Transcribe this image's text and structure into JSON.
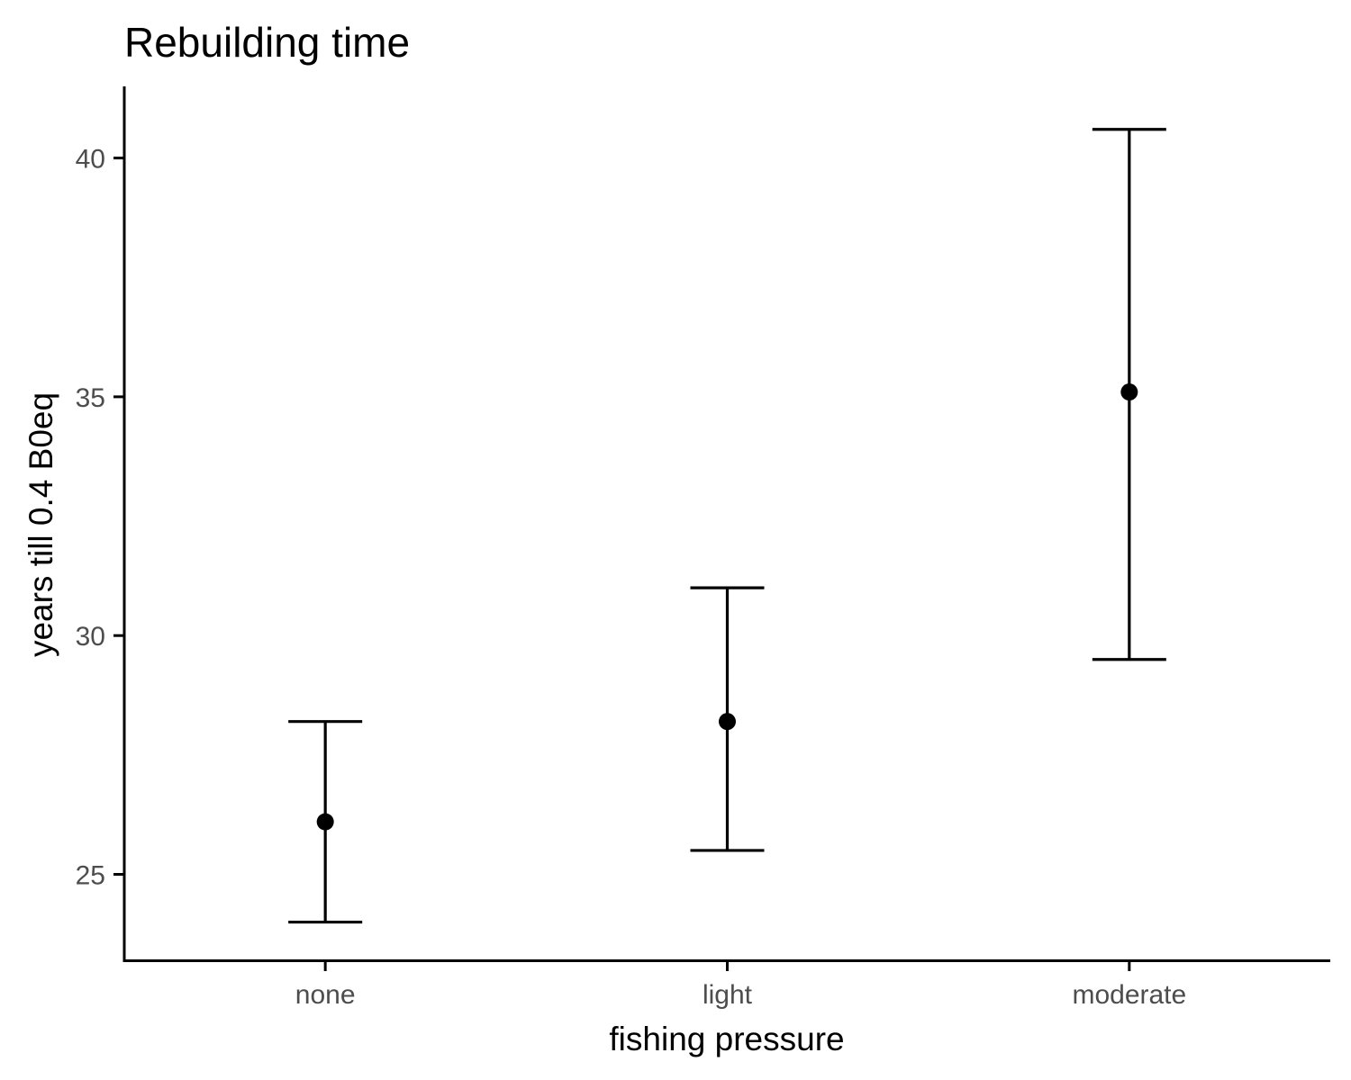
{
  "chart_data": {
    "type": "scatter",
    "title": "Rebuilding time",
    "xlabel": "fishing pressure",
    "ylabel": "years till 0.4 B0eq",
    "categories": [
      "none",
      "light",
      "moderate"
    ],
    "series": [
      {
        "values": [
          26.1,
          28.2,
          35.1
        ],
        "lower": [
          24.0,
          25.5,
          29.5
        ],
        "upper": [
          28.2,
          31.0,
          40.6
        ]
      }
    ],
    "y_ticks": [
      "25",
      "30",
      "35",
      "40"
    ],
    "ylim": [
      23.2,
      41.5
    ],
    "grid": false,
    "legend": "none",
    "colors": {
      "points": "#000000",
      "error_bars": "#000000",
      "tick_labels": "#4d4d4d",
      "axis": "#000000"
    }
  }
}
